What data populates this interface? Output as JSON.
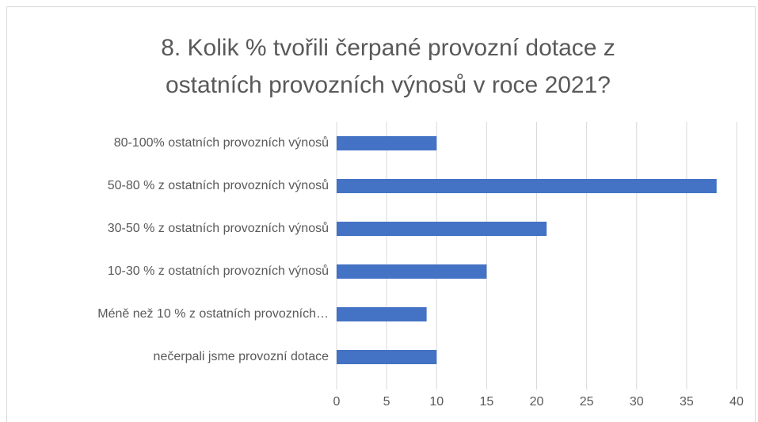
{
  "chart_data": {
    "type": "barh",
    "title": [
      "8. Kolik % tvořili čerpané provozní dotace z",
      "ostatních provozních výnosů v roce 2021?"
    ],
    "categories": [
      "80-100% ostatních provozních výnosů",
      "50-80 % z ostatních provozních výnosů",
      "30-50 % z ostatních provozních výnosů",
      "10-30 % z ostatních provozních výnosů",
      "Méně než 10 % z ostatních provozních…",
      "nečerpali jsme provozní dotace"
    ],
    "values": [
      10,
      38,
      21,
      15,
      9,
      10
    ],
    "color": "#4472c4",
    "xlim": [
      0,
      40
    ],
    "xticks": [
      0,
      5,
      10,
      15,
      20,
      25,
      30,
      35,
      40
    ],
    "grid": true
  }
}
